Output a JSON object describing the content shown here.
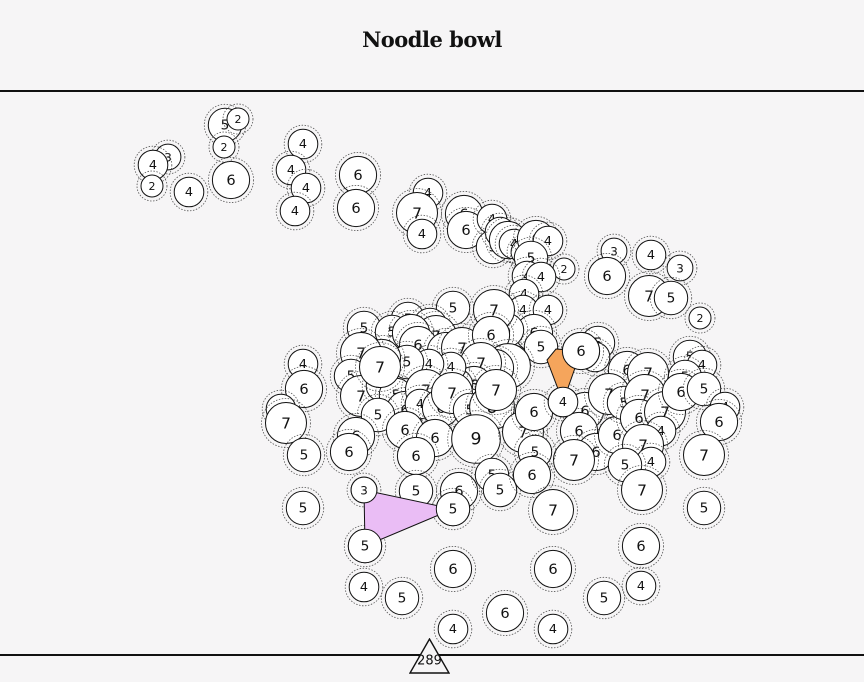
{
  "title": "Noodle bowl",
  "score": "289",
  "colors": {
    "background": "#f6f5f6",
    "circle_fill": "#ffffff",
    "stroke": "#111111",
    "orange_polygon": "#f5a55c",
    "pink_polygon": "#eabdf5"
  },
  "nodes": [
    [
      168,
      157,
      3
    ],
    [
      153,
      165,
      4
    ],
    [
      152,
      186,
      2
    ],
    [
      189,
      192,
      4
    ],
    [
      231,
      180,
      6
    ],
    [
      225,
      125,
      5
    ],
    [
      238,
      119,
      2
    ],
    [
      224,
      147,
      2
    ],
    [
      303,
      144,
      4
    ],
    [
      291,
      170,
      4
    ],
    [
      306,
      188,
      4
    ],
    [
      295,
      211,
      4
    ],
    [
      358,
      175,
      6
    ],
    [
      356,
      208,
      6
    ],
    [
      428,
      193,
      4
    ],
    [
      417,
      213,
      7
    ],
    [
      422,
      234,
      4
    ],
    [
      464,
      214,
      6
    ],
    [
      466,
      230,
      6
    ],
    [
      492,
      219,
      4
    ],
    [
      493,
      247,
      5
    ],
    [
      500,
      232,
      4
    ],
    [
      508,
      240,
      6
    ],
    [
      514,
      244,
      4
    ],
    [
      524,
      252,
      3
    ],
    [
      536,
      239,
      6
    ],
    [
      548,
      241,
      4
    ],
    [
      531,
      258,
      5
    ],
    [
      564,
      269,
      2
    ],
    [
      527,
      276,
      4
    ],
    [
      541,
      277,
      4
    ],
    [
      524,
      294,
      4
    ],
    [
      523,
      310,
      4
    ],
    [
      548,
      310,
      4
    ],
    [
      534,
      333,
      6
    ],
    [
      541,
      347,
      5
    ],
    [
      507,
      330,
      5
    ],
    [
      614,
      251,
      3
    ],
    [
      651,
      255,
      4
    ],
    [
      680,
      268,
      3
    ],
    [
      607,
      276,
      6
    ],
    [
      649,
      296,
      7
    ],
    [
      671,
      298,
      5
    ],
    [
      700,
      318,
      2
    ],
    [
      453,
      308,
      5
    ],
    [
      364,
      328,
      5
    ],
    [
      408,
      319,
      5
    ],
    [
      430,
      325,
      5
    ],
    [
      436,
      336,
      7
    ],
    [
      392,
      332,
      5
    ],
    [
      411,
      333,
      6
    ],
    [
      418,
      345,
      6
    ],
    [
      446,
      351,
      6
    ],
    [
      462,
      348,
      7
    ],
    [
      494,
      310,
      7
    ],
    [
      491,
      335,
      6
    ],
    [
      508,
      366,
      8
    ],
    [
      495,
      368,
      6
    ],
    [
      481,
      363,
      7
    ],
    [
      474,
      385,
      6
    ],
    [
      456,
      385,
      5
    ],
    [
      451,
      367,
      4
    ],
    [
      429,
      364,
      4
    ],
    [
      407,
      362,
      5
    ],
    [
      382,
      358,
      6
    ],
    [
      361,
      353,
      7
    ],
    [
      351,
      376,
      5
    ],
    [
      361,
      396,
      7
    ],
    [
      381,
      386,
      4
    ],
    [
      396,
      395,
      5
    ],
    [
      405,
      410,
      6
    ],
    [
      426,
      390,
      7
    ],
    [
      420,
      404,
      4
    ],
    [
      441,
      408,
      6
    ],
    [
      452,
      393,
      7
    ],
    [
      470,
      410,
      5
    ],
    [
      492,
      407,
      8
    ],
    [
      378,
      415,
      5
    ],
    [
      380,
      367,
      7
    ],
    [
      303,
      364,
      4
    ],
    [
      304,
      389,
      6
    ],
    [
      281,
      409,
      4
    ],
    [
      286,
      423,
      7
    ],
    [
      356,
      436,
      6
    ],
    [
      349,
      452,
      6
    ],
    [
      405,
      430,
      6
    ],
    [
      435,
      438,
      6
    ],
    [
      416,
      456,
      6
    ],
    [
      476,
      439,
      9
    ],
    [
      523,
      432,
      7
    ],
    [
      534,
      412,
      6
    ],
    [
      496,
      390,
      7
    ],
    [
      598,
      343,
      5
    ],
    [
      595,
      357,
      4
    ],
    [
      581,
      351,
      6
    ],
    [
      563,
      402,
      4
    ],
    [
      585,
      411,
      6
    ],
    [
      579,
      431,
      6
    ],
    [
      596,
      452,
      6
    ],
    [
      574,
      460,
      7
    ],
    [
      617,
      435,
      6
    ],
    [
      627,
      370,
      6
    ],
    [
      648,
      373,
      7
    ],
    [
      609,
      394,
      7
    ],
    [
      624,
      403,
      5
    ],
    [
      645,
      395,
      7
    ],
    [
      639,
      418,
      6
    ],
    [
      665,
      412,
      7
    ],
    [
      661,
      431,
      4
    ],
    [
      643,
      445,
      7
    ],
    [
      651,
      462,
      4
    ],
    [
      625,
      465,
      5
    ],
    [
      642,
      490,
      7
    ],
    [
      690,
      357,
      5
    ],
    [
      702,
      365,
      4
    ],
    [
      685,
      377,
      5
    ],
    [
      681,
      392,
      6
    ],
    [
      704,
      389,
      5
    ],
    [
      725,
      407,
      4
    ],
    [
      719,
      422,
      6
    ],
    [
      704,
      455,
      7
    ],
    [
      704,
      508,
      5
    ],
    [
      304,
      455,
      5
    ],
    [
      303,
      508,
      5
    ],
    [
      364,
      490,
      3
    ],
    [
      416,
      491,
      5
    ],
    [
      459,
      491,
      6
    ],
    [
      453,
      509,
      5
    ],
    [
      492,
      475,
      5
    ],
    [
      500,
      490,
      5
    ],
    [
      535,
      452,
      5
    ],
    [
      532,
      475,
      6
    ],
    [
      553,
      510,
      7
    ],
    [
      365,
      546,
      5
    ],
    [
      453,
      569,
      6
    ],
    [
      553,
      569,
      6
    ],
    [
      641,
      546,
      6
    ],
    [
      364,
      587,
      4
    ],
    [
      402,
      598,
      5
    ],
    [
      604,
      598,
      5
    ],
    [
      641,
      586,
      4
    ],
    [
      505,
      613,
      6
    ],
    [
      453,
      629,
      4
    ],
    [
      553,
      629,
      4
    ]
  ]
}
